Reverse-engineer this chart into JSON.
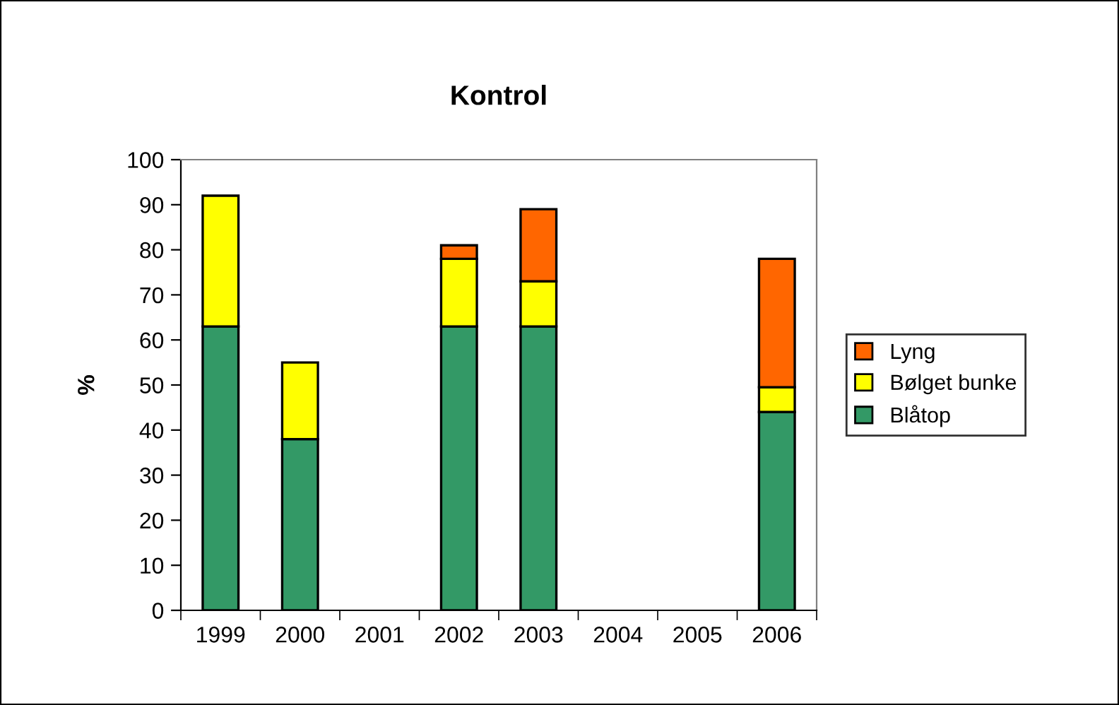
{
  "chart_data": {
    "type": "bar",
    "title": "Kontrol",
    "ylabel": "%",
    "stacked": true,
    "categories": [
      "1999",
      "2000",
      "2001",
      "2002",
      "2003",
      "2004",
      "2005",
      "2006"
    ],
    "series": [
      {
        "name": "Blåtop",
        "color": "#339966",
        "values": [
          63,
          38,
          null,
          63,
          63,
          null,
          null,
          44
        ]
      },
      {
        "name": "Bølget bunke",
        "color": "#ffff00",
        "values": [
          29,
          17,
          null,
          15,
          10,
          null,
          null,
          5.5
        ]
      },
      {
        "name": "Lyng",
        "color": "#ff6600",
        "values": [
          null,
          null,
          null,
          3,
          16,
          null,
          null,
          28.5
        ]
      }
    ],
    "ylim": [
      0,
      100
    ],
    "yticks": [
      0,
      10,
      20,
      30,
      40,
      50,
      60,
      70,
      80,
      90,
      100
    ],
    "grid": false,
    "legend": "right"
  }
}
